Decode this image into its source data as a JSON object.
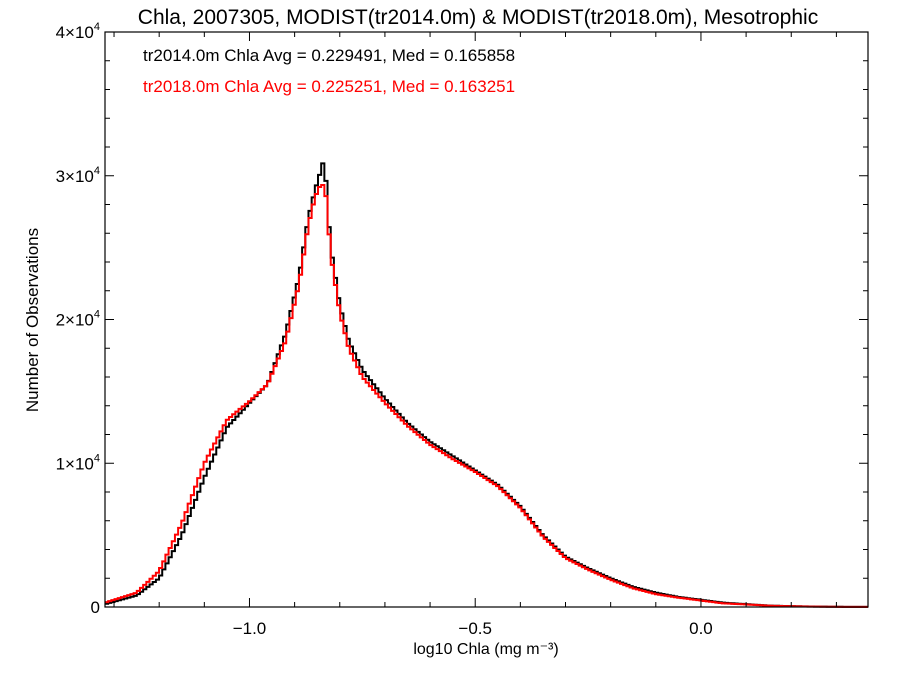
{
  "chart_data": {
    "type": "line",
    "title": "Chla, 2007305, MODIST(tr2014.0m) & MODIST(tr2018.0m), Mesotrophic",
    "xlabel": "log10 Chla (mg m⁻³)",
    "ylabel": "Number of Observations",
    "xlim": [
      -1.32,
      0.37
    ],
    "ylim": [
      0,
      40000
    ],
    "x_ticks": [
      {
        "value": -1.0,
        "label": "−1.0"
      },
      {
        "value": -0.5,
        "label": "−0.5"
      },
      {
        "value": 0.0,
        "label": "0.0"
      }
    ],
    "y_ticks": [
      {
        "value": 0,
        "base": "0",
        "exp": ""
      },
      {
        "value": 10000,
        "base": "1×10",
        "exp": "4"
      },
      {
        "value": 20000,
        "base": "2×10",
        "exp": "4"
      },
      {
        "value": 30000,
        "base": "3×10",
        "exp": "4"
      },
      {
        "value": 40000,
        "base": "4×10",
        "exp": "4"
      }
    ],
    "grid": false,
    "legend_position": "top-left",
    "series": [
      {
        "name": "tr2014.0m Chla Avg = 0.229491, Med = 0.165858",
        "color": "#000000",
        "x": [
          -1.32,
          -1.25,
          -1.2,
          -1.15,
          -1.1,
          -1.05,
          -1.02,
          -1.0,
          -0.96,
          -0.92,
          -0.89,
          -0.87,
          -0.855,
          -0.845,
          -0.84,
          -0.835,
          -0.83,
          -0.825,
          -0.82,
          -0.81,
          -0.8,
          -0.78,
          -0.75,
          -0.7,
          -0.65,
          -0.6,
          -0.55,
          -0.5,
          -0.45,
          -0.4,
          -0.35,
          -0.3,
          -0.25,
          -0.2,
          -0.15,
          -0.1,
          -0.05,
          0.0,
          0.05,
          0.1,
          0.15,
          0.2,
          0.25,
          0.3,
          0.37
        ],
        "y": [
          200,
          800,
          2000,
          5000,
          9000,
          12500,
          13500,
          14200,
          15500,
          19000,
          23000,
          27000,
          29000,
          30000,
          31000,
          30700,
          29500,
          27000,
          25000,
          23000,
          21000,
          18500,
          16500,
          14500,
          12800,
          11500,
          10500,
          9500,
          8500,
          7000,
          5000,
          3500,
          2700,
          2000,
          1400,
          1000,
          700,
          500,
          300,
          200,
          100,
          60,
          30,
          15,
          5
        ]
      },
      {
        "name": "tr2018.0m Chla Avg = 0.225251, Med = 0.163251",
        "color": "#ff0000",
        "x": [
          -1.32,
          -1.25,
          -1.2,
          -1.15,
          -1.1,
          -1.05,
          -1.02,
          -1.0,
          -0.96,
          -0.92,
          -0.89,
          -0.87,
          -0.855,
          -0.845,
          -0.84,
          -0.835,
          -0.83,
          -0.825,
          -0.82,
          -0.81,
          -0.8,
          -0.78,
          -0.75,
          -0.7,
          -0.65,
          -0.6,
          -0.55,
          -0.5,
          -0.45,
          -0.4,
          -0.35,
          -0.3,
          -0.25,
          -0.2,
          -0.15,
          -0.1,
          -0.05,
          0.0,
          0.05,
          0.1,
          0.15,
          0.2,
          0.25,
          0.3,
          0.37
        ],
        "y": [
          300,
          1000,
          2500,
          5800,
          10000,
          13000,
          13800,
          14300,
          15500,
          18500,
          22500,
          26500,
          28500,
          29200,
          29500,
          29200,
          28500,
          26500,
          24500,
          22500,
          20500,
          18000,
          16000,
          14200,
          12600,
          11300,
          10300,
          9400,
          8400,
          6900,
          4900,
          3400,
          2600,
          1900,
          1300,
          900,
          650,
          450,
          250,
          180,
          90,
          50,
          25,
          12,
          5
        ]
      }
    ]
  }
}
